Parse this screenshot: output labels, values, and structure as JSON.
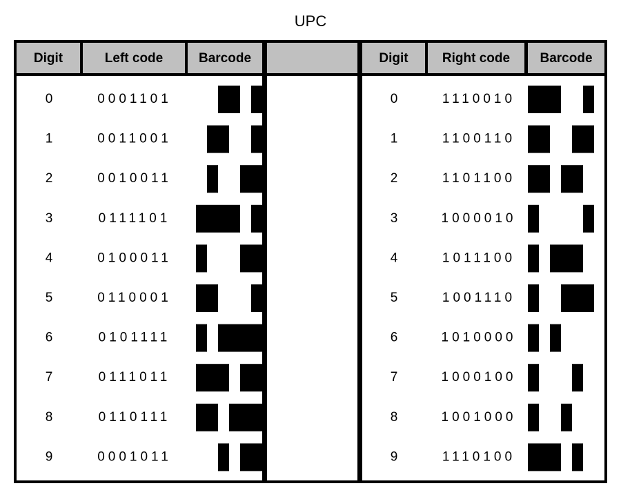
{
  "title": "UPC",
  "left": {
    "headers": [
      "Digit",
      "Left code",
      "Barcode"
    ],
    "rows": [
      [
        "0",
        "0001101"
      ],
      [
        "1",
        "0011001"
      ],
      [
        "2",
        "0010011"
      ],
      [
        "3",
        "0111101"
      ],
      [
        "4",
        "0100011"
      ],
      [
        "5",
        "0110001"
      ],
      [
        "6",
        "0101111"
      ],
      [
        "7",
        "0111011"
      ],
      [
        "8",
        "0110111"
      ],
      [
        "9",
        "0001011"
      ]
    ]
  },
  "right": {
    "headers": [
      "Digit",
      "Right code",
      "Barcode"
    ],
    "rows": [
      [
        "0",
        "1110010"
      ],
      [
        "1",
        "1100110"
      ],
      [
        "2",
        "1101100"
      ],
      [
        "3",
        "1000010"
      ],
      [
        "4",
        "1011100"
      ],
      [
        "5",
        "1001110"
      ],
      [
        "6",
        "1010000"
      ],
      [
        "7",
        "1000100"
      ],
      [
        "8",
        "1001000"
      ],
      [
        "9",
        "1110100"
      ]
    ]
  }
}
